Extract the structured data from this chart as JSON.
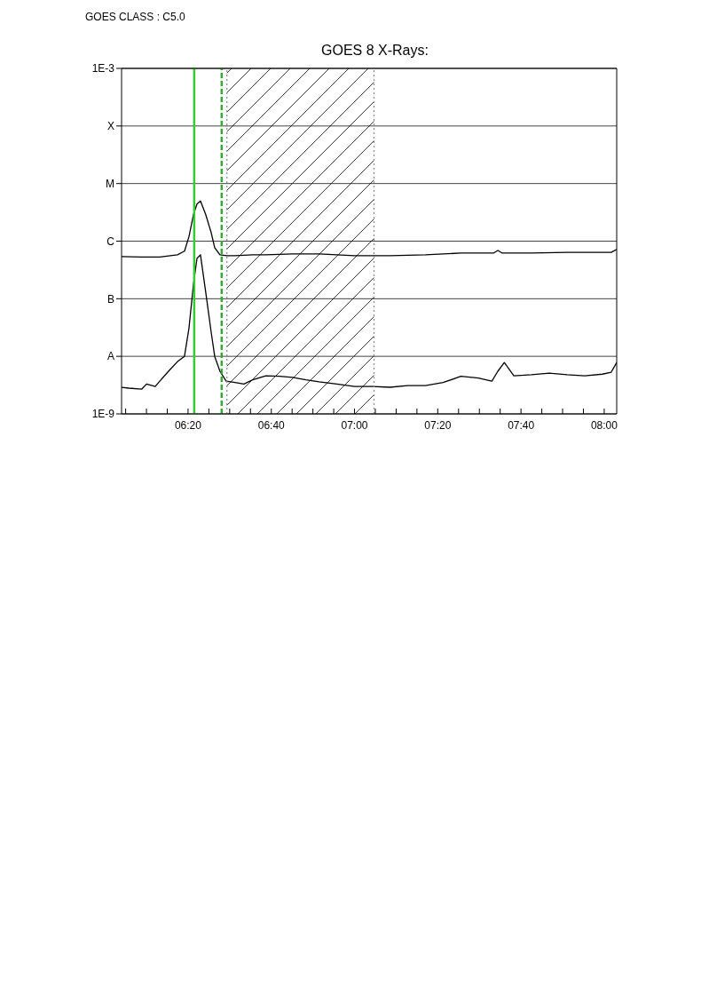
{
  "chart_data": {
    "type": "line",
    "title": "GOES 8 X-Rays:",
    "annotations": [
      "GOES CLASS : C5.0"
    ],
    "series": [
      {
        "color": "#000000",
        "x": [
          6.067,
          6.148,
          6.22,
          6.291,
          6.319,
          6.337,
          6.355,
          6.369,
          6.383,
          6.404,
          6.426,
          6.44,
          6.461,
          6.489,
          6.521,
          6.592,
          6.645,
          6.752,
          6.858,
          7.0,
          7.142,
          7.284,
          7.426,
          7.496,
          7.556,
          7.574,
          7.592,
          7.638,
          7.709,
          7.851,
          8.028,
          8.05
        ],
        "values": [
          5.4e-07,
          5.3e-07,
          5.3e-07,
          5.8e-07,
          6.7e-07,
          1.2e-06,
          2.9e-06,
          4.4e-06,
          5e-06,
          2.9e-06,
          1.4e-06,
          7.7e-07,
          5.8e-07,
          5.6e-07,
          5.6e-07,
          5.8e-07,
          5.8e-07,
          6e-07,
          6e-07,
          5.6e-07,
          5.6e-07,
          5.8e-07,
          6.2e-07,
          6.2e-07,
          6.2e-07,
          6.9e-07,
          6.2e-07,
          6.2e-07,
          6.2e-07,
          6.4e-07,
          6.4e-07,
          7.2e-07
        ]
      },
      {
        "color": "#000000",
        "x": [
          6.067,
          6.096,
          6.148,
          6.167,
          6.202,
          6.22,
          6.255,
          6.291,
          6.319,
          6.337,
          6.355,
          6.369,
          6.383,
          6.404,
          6.426,
          6.44,
          6.461,
          6.486,
          6.521,
          6.557,
          6.592,
          6.645,
          6.699,
          6.752,
          6.805,
          6.858,
          6.929,
          7.0,
          7.071,
          7.142,
          7.213,
          7.284,
          7.355,
          7.426,
          7.496,
          7.55,
          7.574,
          7.6,
          7.638,
          7.709,
          7.78,
          7.851,
          7.922,
          7.993,
          8.028,
          8.05
        ],
        "values": [
          2.9e-09,
          2.8e-09,
          2.7e-09,
          3.3e-09,
          3e-09,
          3.7e-09,
          5.5e-09,
          8.1e-09,
          1e-08,
          3.1e-08,
          1.8e-07,
          5e-07,
          5.8e-07,
          1.3e-07,
          2.6e-08,
          1e-08,
          5.5e-09,
          3.7e-09,
          3.5e-09,
          3.3e-09,
          3.9e-09,
          4.6e-09,
          4.5e-09,
          4.3e-09,
          3.9e-09,
          3.6e-09,
          3.3e-09,
          3e-09,
          3e-09,
          2.9e-09,
          3.1e-09,
          3.1e-09,
          3.5e-09,
          4.5e-09,
          4.2e-09,
          3.7e-09,
          5.5e-09,
          7.8e-09,
          4.6e-09,
          4.8e-09,
          5.1e-09,
          4.8e-09,
          4.6e-09,
          4.9e-09,
          5.3e-09,
          7.8e-09
        ]
      }
    ],
    "xlim": [
      6.067,
      8.05
    ],
    "xticks": [
      {
        "value": 6.0833,
        "label": null
      },
      {
        "value": 6.1667,
        "label": null
      },
      {
        "value": 6.25,
        "label": null
      },
      {
        "value": 6.3333,
        "label": "06:20"
      },
      {
        "value": 6.4167,
        "label": null
      },
      {
        "value": 6.5,
        "label": null
      },
      {
        "value": 6.5833,
        "label": null
      },
      {
        "value": 6.6667,
        "label": "06:40"
      },
      {
        "value": 6.75,
        "label": null
      },
      {
        "value": 6.8333,
        "label": null
      },
      {
        "value": 6.9167,
        "label": null
      },
      {
        "value": 7,
        "label": "07:00"
      },
      {
        "value": 7.0833,
        "label": null
      },
      {
        "value": 7.1667,
        "label": null
      },
      {
        "value": 7.25,
        "label": null
      },
      {
        "value": 7.3333,
        "label": "07:20"
      },
      {
        "value": 7.4167,
        "label": null
      },
      {
        "value": 7.5,
        "label": null
      },
      {
        "value": 7.5833,
        "label": null
      },
      {
        "value": 7.6667,
        "label": "07:40"
      },
      {
        "value": 7.75,
        "label": null
      },
      {
        "value": 7.8333,
        "label": null
      },
      {
        "value": 7.9167,
        "label": null
      },
      {
        "value": 8,
        "label": "08:00"
      }
    ],
    "ylim": [
      1e-09,
      0.001
    ],
    "yticks": [
      {
        "value": 1e-09,
        "label": "1E-9"
      },
      {
        "value": 1e-08,
        "label": "A"
      },
      {
        "value": 1e-07,
        "label": "B"
      },
      {
        "value": 1e-06,
        "label": "C"
      },
      {
        "value": 1e-05,
        "label": "M"
      },
      {
        "value": 0.0001,
        "label": "X"
      },
      {
        "value": 0.001,
        "label": "1E-3"
      }
    ],
    "log": true,
    "grid": "y",
    "marker": "none",
    "line_style": "solid",
    "ref_lines": [
      {
        "axis": "x",
        "value": 6.358,
        "color": "#33cc33",
        "line_style": "solid"
      },
      {
        "axis": "x",
        "value": 6.468,
        "color": "#33aa33",
        "line_style": "dashed"
      },
      {
        "axis": "x",
        "value": 6.489,
        "color": "#888888",
        "line_style": "dotted"
      },
      {
        "axis": "x",
        "value": 7.078,
        "color": "#888888",
        "line_style": "dotted"
      }
    ],
    "bands": [
      {
        "axis": "x",
        "from": 6.489,
        "to": 7.078,
        "color": "#000000"
      }
    ]
  }
}
